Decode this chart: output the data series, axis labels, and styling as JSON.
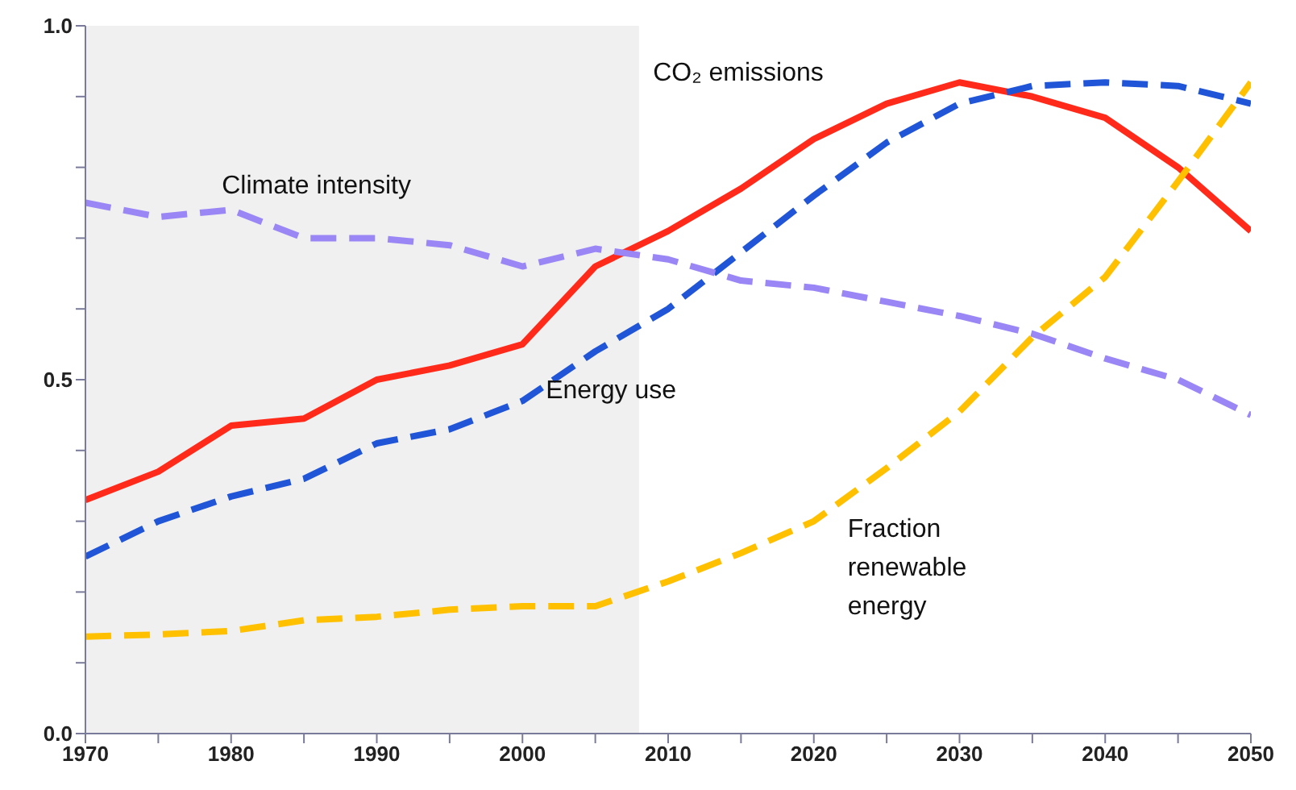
{
  "chart_data": {
    "type": "line",
    "x": [
      1970,
      1975,
      1980,
      1985,
      1990,
      1995,
      2000,
      2005,
      2010,
      2015,
      2020,
      2025,
      2030,
      2035,
      2040,
      2045,
      2050
    ],
    "series": [
      {
        "name": "CO₂ emissions",
        "color": "#ff2a1a",
        "line_style": "solid",
        "values": [
          0.33,
          0.37,
          0.435,
          0.445,
          0.5,
          0.52,
          0.55,
          0.66,
          0.71,
          0.77,
          0.84,
          0.89,
          0.92,
          0.9,
          0.87,
          0.8,
          0.71
        ]
      },
      {
        "name": "Energy use",
        "color": "#1f55d6",
        "line_style": "dashed",
        "values": [
          0.25,
          0.3,
          0.335,
          0.36,
          0.41,
          0.43,
          0.47,
          0.54,
          0.6,
          0.68,
          0.76,
          0.835,
          0.89,
          0.915,
          0.92,
          0.915,
          0.89
        ]
      },
      {
        "name": "Climate intensity",
        "color": "#9b86f5",
        "line_style": "dashed",
        "values": [
          0.75,
          0.73,
          0.74,
          0.7,
          0.7,
          0.69,
          0.66,
          0.685,
          0.67,
          0.64,
          0.63,
          0.61,
          0.59,
          0.565,
          0.53,
          0.5,
          0.45
        ]
      },
      {
        "name": "Fraction renewable energy",
        "color": "#ffc000",
        "line_style": "dashed",
        "values": [
          0.137,
          0.14,
          0.145,
          0.16,
          0.165,
          0.175,
          0.18,
          0.18,
          0.215,
          0.255,
          0.3,
          0.375,
          0.455,
          0.56,
          0.645,
          0.78,
          0.92
        ]
      }
    ],
    "xlim": [
      1970,
      2050
    ],
    "xticks": [
      1970,
      {
        "value": 1975,
        "label": null
      },
      1980,
      {
        "value": 1985,
        "label": null
      },
      1990,
      {
        "value": 1995,
        "label": null
      },
      2000,
      {
        "value": 2005,
        "label": null
      },
      2010,
      {
        "value": 2015,
        "label": null
      },
      2020,
      {
        "value": 2025,
        "label": null
      },
      2030,
      {
        "value": 2035,
        "label": null
      },
      2040,
      {
        "value": 2045,
        "label": null
      },
      2050
    ],
    "ylim": [
      0,
      1
    ],
    "yticks": [
      {
        "value": 0,
        "label": "0.0"
      },
      {
        "value": 0.1,
        "label": null
      },
      {
        "value": 0.2,
        "label": null
      },
      {
        "value": 0.3,
        "label": null
      },
      {
        "value": 0.4,
        "label": null
      },
      {
        "value": 0.5,
        "label": "0.5"
      },
      {
        "value": 0.6,
        "label": null
      },
      {
        "value": 0.7,
        "label": null
      },
      {
        "value": 0.8,
        "label": null
      },
      {
        "value": 0.9,
        "label": null
      },
      {
        "value": 1,
        "label": "1.0"
      }
    ],
    "bands": [
      {
        "axis": "x",
        "from": 1970,
        "to": 2008,
        "color": "#f0f0f0"
      }
    ],
    "grid": false,
    "legend": false,
    "marker": "none"
  }
}
